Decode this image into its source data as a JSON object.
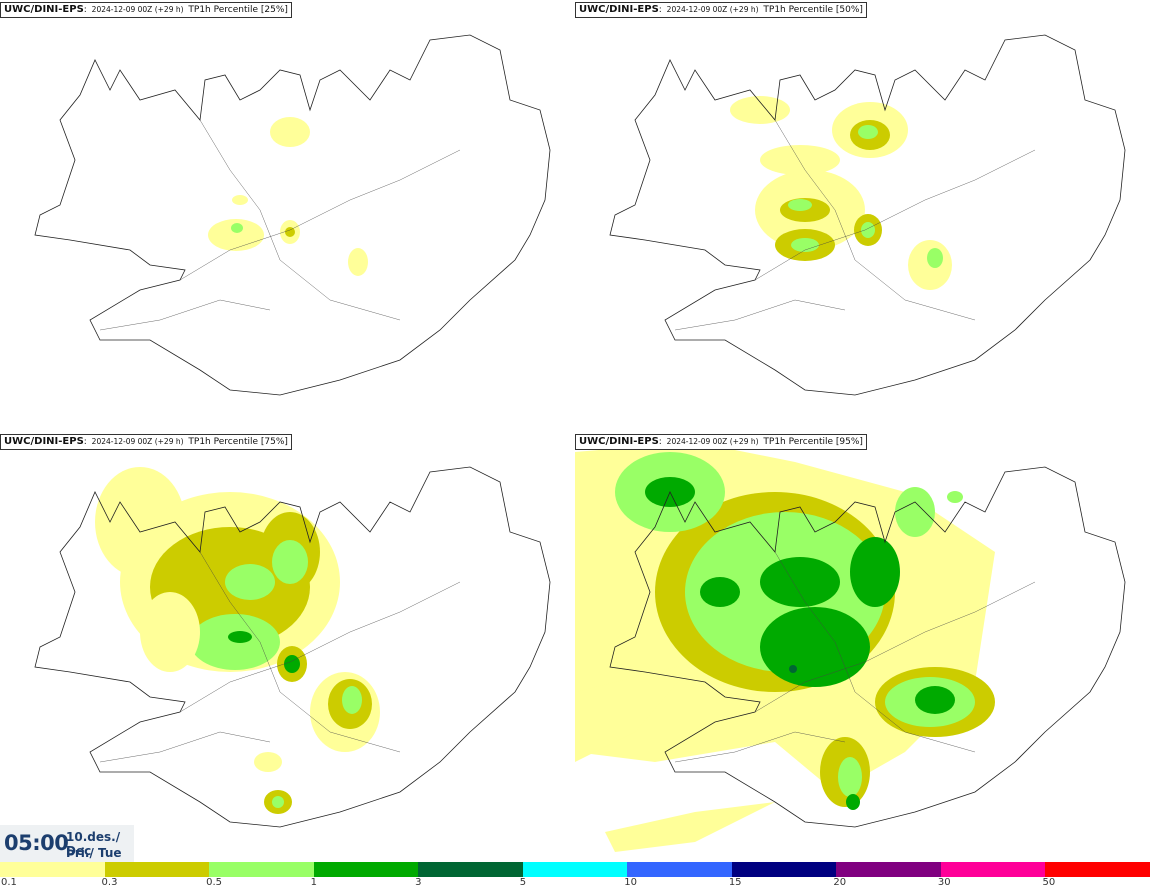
{
  "panels": [
    {
      "model": "UWC/DINI-EPS",
      "run": "2024-12-09 00Z (+29 h)",
      "var": "TP1h Percentile [25%]"
    },
    {
      "model": "UWC/DINI-EPS",
      "run": "2024-12-09 00Z (+29 h)",
      "var": "TP1h Percentile [50%]"
    },
    {
      "model": "UWC/DINI-EPS",
      "run": "2024-12-09 00Z (+29 h)",
      "var": "TP1h Percentile [75%]"
    },
    {
      "model": "UWC/DINI-EPS",
      "run": "2024-12-09 00Z (+29 h)",
      "var": "TP1h Percentile [95%]"
    }
  ],
  "valid": {
    "time": "05:00",
    "date": "10.des./ Dec",
    "weekday": "Þri./ Tue"
  },
  "legend": {
    "colors": [
      "#ffff99",
      "#cccc00",
      "#99ff66",
      "#00aa00",
      "#006633",
      "#00ffff",
      "#3366ff",
      "#000080",
      "#800080",
      "#ff0099",
      "#ff0000"
    ],
    "ticks": [
      "0.1",
      "0.3",
      "0.5",
      "1",
      "3",
      "5",
      "10",
      "15",
      "20",
      "30",
      "50"
    ]
  }
}
